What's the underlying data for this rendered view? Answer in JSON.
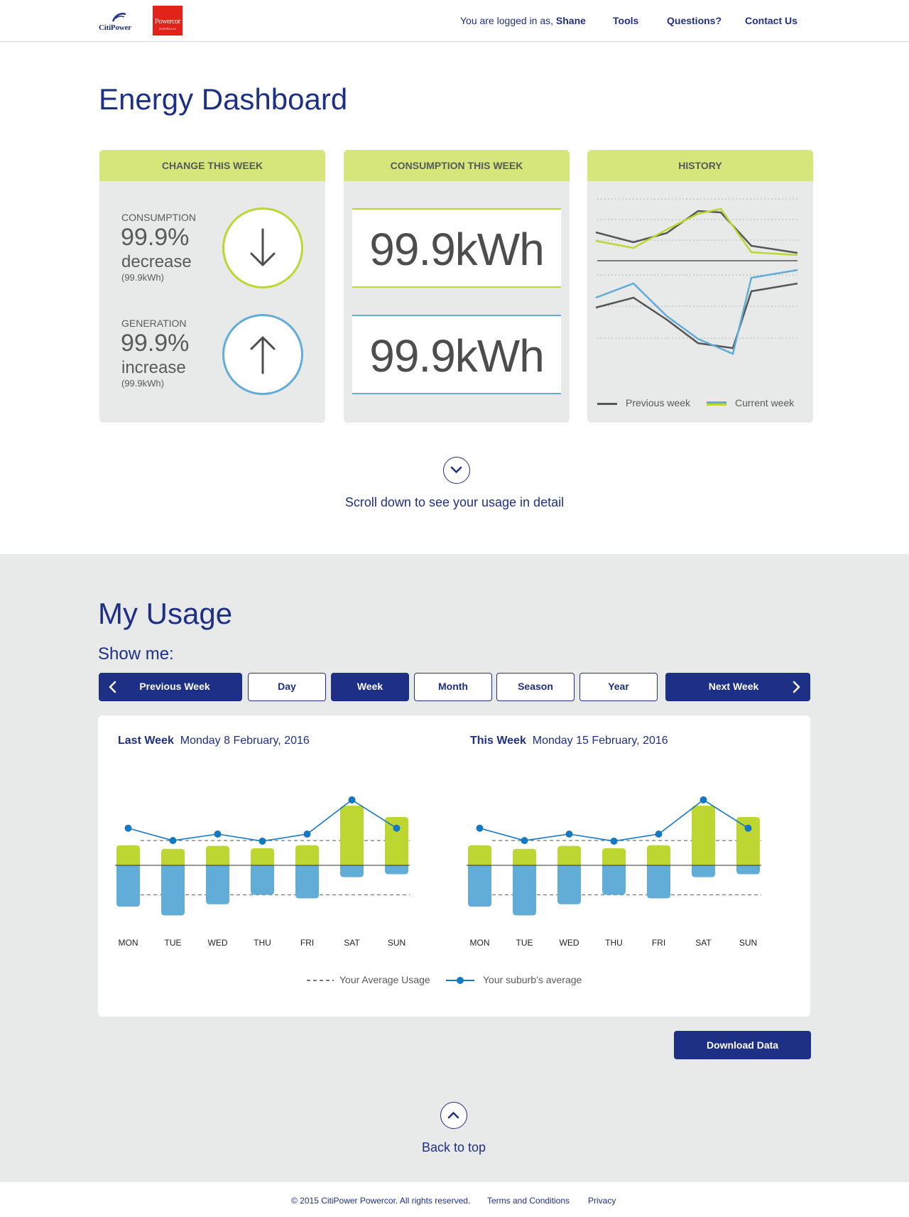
{
  "header": {
    "logo_citi": "CitiPower",
    "logo_power": "Powercor",
    "logo_power_sub": "AUSTRALIA",
    "logged_prefix": "You are logged in as,",
    "user_name": "Shane",
    "nav": [
      "Tools",
      "Questions?",
      "Contact Us"
    ]
  },
  "page_title": "Energy Dashboard",
  "cards": {
    "change": {
      "title": "CHANGE THIS WEEK",
      "consumption": {
        "label": "CONSUMPTION",
        "value": "99.9%",
        "direction": "decrease",
        "sub": "(99.9kWh)",
        "icon": "arrow-down-icon",
        "color": "#bdd631"
      },
      "generation": {
        "label": "GENERATION",
        "value": "99.9%",
        "direction": "increase",
        "sub": "(99.9kWh)",
        "icon": "arrow-up-icon",
        "color": "#62acd8"
      }
    },
    "consumption": {
      "title": "CONSUMPTION THIS WEEK",
      "consumption_kwh": "99.9kWh",
      "generation_kwh": "99.9kWh"
    },
    "history": {
      "title": "HISTORY",
      "legend_previous": "Previous week",
      "legend_current": "Current week",
      "colors": {
        "previous": "#555555",
        "current_consumption": "#bdd631",
        "current_generation": "#62acd8"
      }
    }
  },
  "scroll_hint": "Scroll down to see your usage in detail",
  "usage": {
    "title": "My Usage",
    "show_me": "Show me:",
    "prev_label": "Previous Week",
    "next_label": "Next Week",
    "periods": [
      "Day",
      "Week",
      "Month",
      "Season",
      "Year"
    ],
    "active_period": "Week",
    "last_week": {
      "label": "Last Week",
      "date": "Monday 8 February, 2016"
    },
    "this_week": {
      "label": "This Week",
      "date": "Monday 15 February, 2016"
    },
    "legend_avg": "Your Average Usage",
    "legend_suburb": "Your suburb’s average",
    "download": "Download Data"
  },
  "back_to_top": "Back to top",
  "footer": {
    "copyright": "© 2015 CitiPower Powercor. All rights reserved.",
    "terms": "Terms and Conditions",
    "privacy": "Privacy"
  },
  "chart_data": [
    {
      "type": "bar",
      "categories": [
        "MON",
        "TUE",
        "WED",
        "THU",
        "FRI",
        "SAT",
        "SUN"
      ],
      "series": [
        {
          "name": "",
          "values": [
            34,
            28,
            33,
            29,
            34,
            101,
            82
          ]
        },
        {
          "name": "",
          "values": [
            -70,
            -85,
            -66,
            -50,
            -56,
            -20,
            -15
          ]
        }
      ],
      "lines": {
        "average_usage_positive": 42,
        "average_usage_negative": -50,
        "suburb_average": [
          63,
          42,
          53,
          41,
          53,
          111,
          63
        ]
      },
      "ylim": [
        -100,
        120
      ]
    },
    {
      "type": "bar",
      "categories": [
        "MON",
        "TUE",
        "WED",
        "THU",
        "FRI",
        "SAT",
        "SUN"
      ],
      "series": [
        {
          "name": "",
          "values": [
            34,
            28,
            33,
            29,
            34,
            101,
            82
          ]
        },
        {
          "name": "",
          "values": [
            -70,
            -85,
            -66,
            -50,
            -56,
            -20,
            -15
          ]
        }
      ],
      "lines": {
        "average_usage_positive": 42,
        "average_usage_negative": -50,
        "suburb_average": [
          63,
          42,
          53,
          41,
          53,
          111,
          63
        ]
      },
      "ylim": [
        -100,
        120
      ]
    }
  ]
}
